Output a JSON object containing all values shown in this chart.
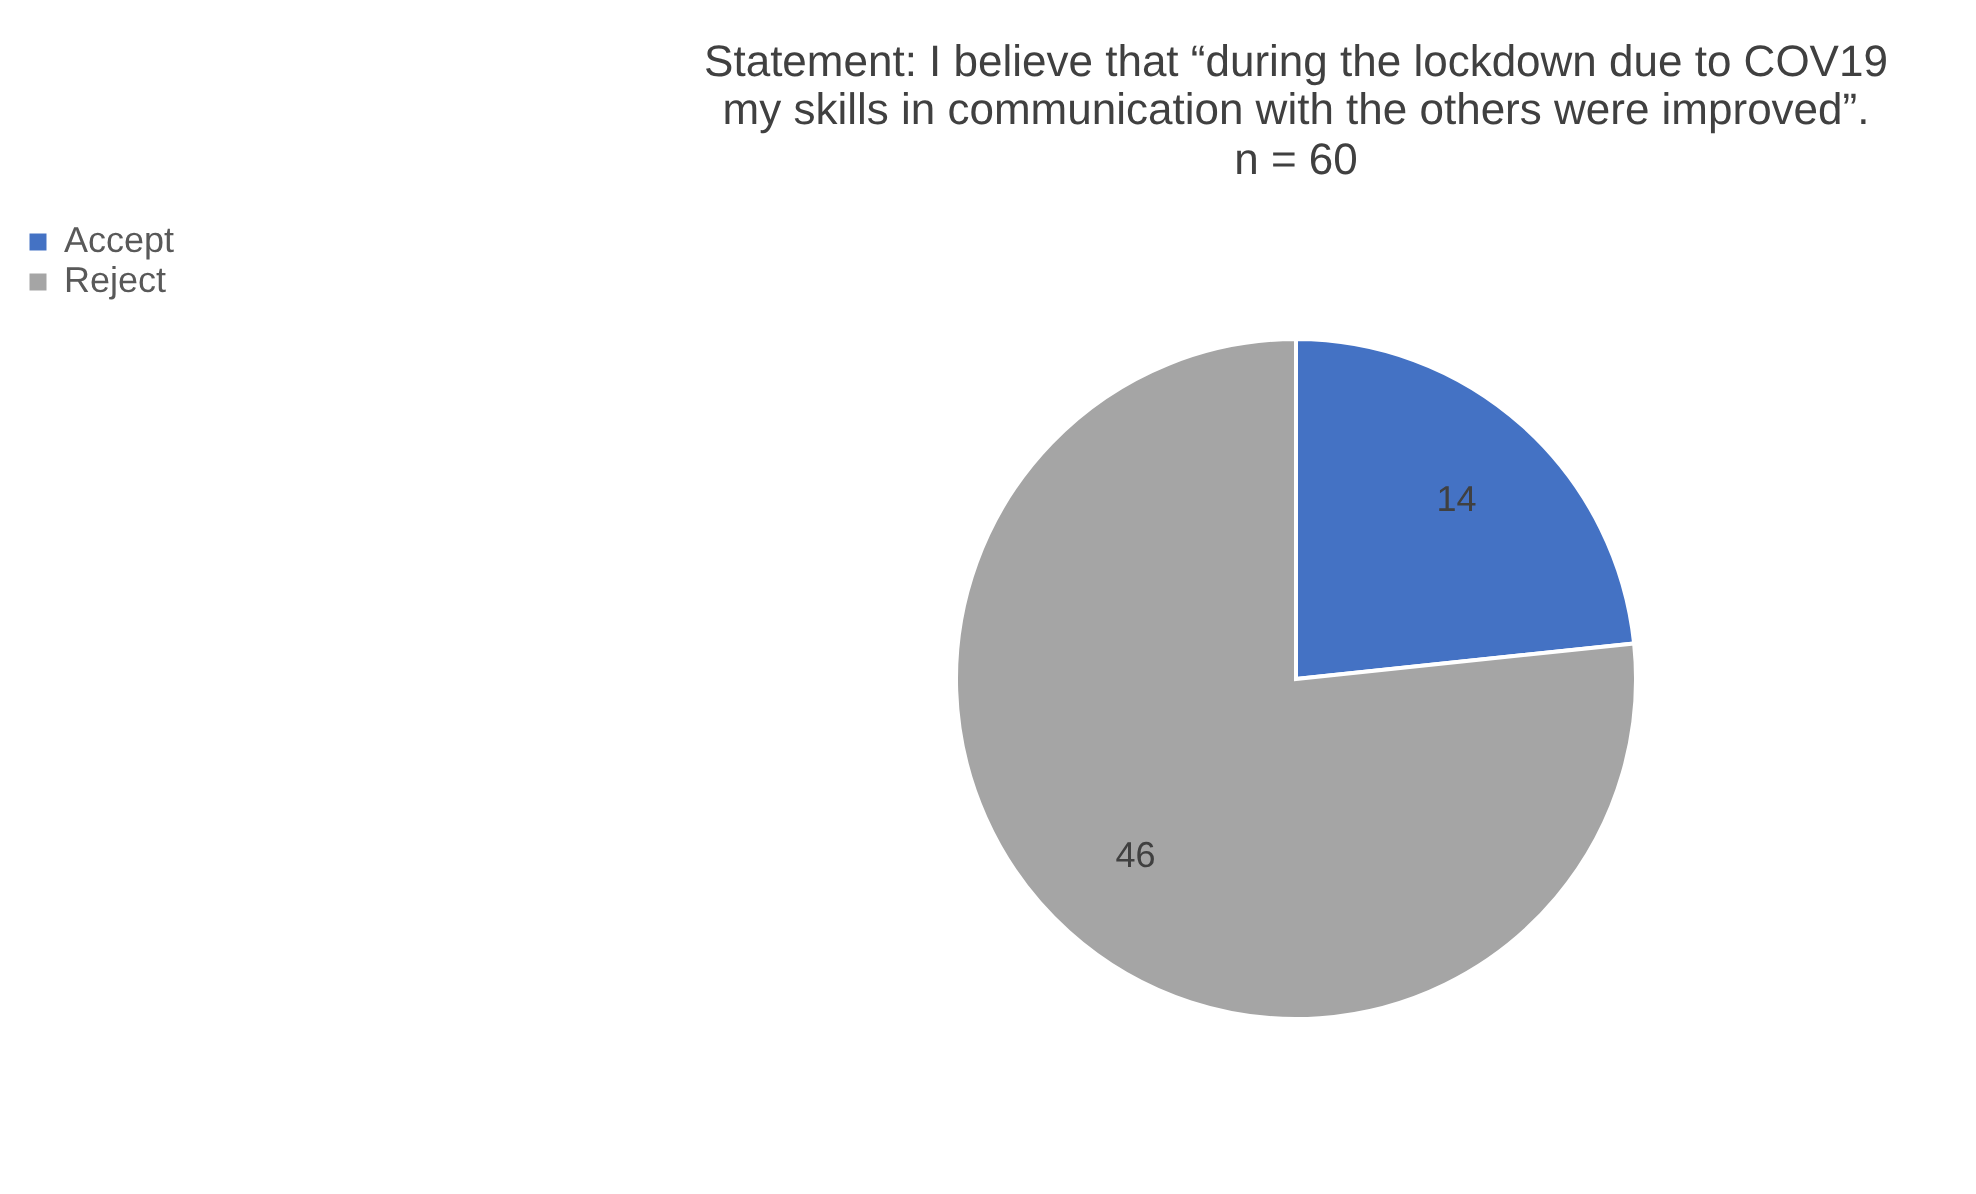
{
  "chart_data": {
    "type": "pie",
    "title": "Statement: I believe that “during the lockdown due to COV19\nmy skills in communication with the others were improved”.",
    "subtitle": "n = 60",
    "categories": [
      "Accept",
      "Reject"
    ],
    "values": [
      14,
      46
    ],
    "colors": [
      "#4472c4",
      "#a5a5a5"
    ],
    "data_labels": true,
    "legend": "left"
  }
}
